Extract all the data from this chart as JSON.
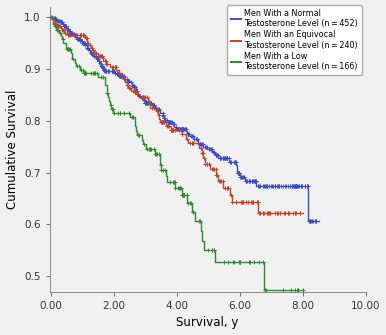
{
  "title": "",
  "xlabel": "Survival, y",
  "ylabel": "Cumulative Survival",
  "xlim": [
    -0.05,
    10.0
  ],
  "ylim": [
    0.47,
    1.02
  ],
  "xticks": [
    0.0,
    2.0,
    4.0,
    6.0,
    8.0,
    10.0
  ],
  "yticks": [
    0.5,
    0.6,
    0.7,
    0.8,
    0.9,
    1.0
  ],
  "xtick_labels": [
    "0.00",
    "2.00",
    "4.00",
    "6.00",
    "8.00",
    "10.00"
  ],
  "ytick_labels": [
    "0.5",
    "0.6",
    "0.7",
    "0.8",
    "0.9",
    "1.0"
  ],
  "colors": {
    "normal": "#3a4dc8",
    "equivocal": "#c0432a",
    "low": "#2d8b2d"
  },
  "legend_labels": [
    "Men With a Normal\nTestosterone Level (n = 452)",
    "Men With an Equivocal\nTestosterone Level (n = 240)",
    "Men With a Low\nTestosterone Level (n = 166)"
  ],
  "figsize": [
    3.86,
    3.35
  ],
  "dpi": 100,
  "bg_color": "#f0f0f0"
}
